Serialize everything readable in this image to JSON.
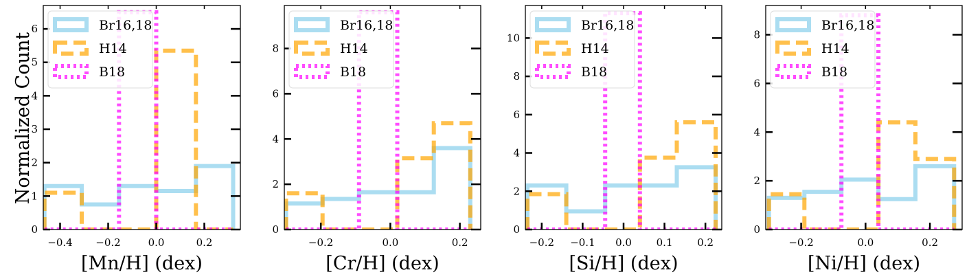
{
  "figure": {
    "ylabel_shared": "Normalized Count",
    "legend_entries": [
      "Br16,18",
      "H14",
      "B18"
    ],
    "colors": {
      "Br16,18": "#87CEEB",
      "H14": "#FFA500",
      "B18": "#FF00FF",
      "axis": "#000000"
    }
  },
  "chart_data": [
    {
      "type": "histogram",
      "title": "",
      "xlabel": "[Mn/H] (dex)",
      "ylabel": "Normalized Count",
      "xlim": [
        -0.47,
        0.35
      ],
      "ylim": [
        0,
        6.7
      ],
      "xticks": [
        -0.4,
        -0.2,
        0.0,
        0.2
      ],
      "xtick_labels": [
        "−0.4",
        "−0.2",
        "0.0",
        "0.2"
      ],
      "yticks": [
        0,
        1,
        2,
        3,
        4,
        5,
        6
      ],
      "ytick_labels": [
        "0",
        "1",
        "2",
        "3",
        "4",
        "5",
        "6"
      ],
      "legend_location": "upper-left",
      "series": [
        {
          "name": "Br16,18",
          "style": "solid",
          "edges": [
            -0.465,
            -0.31,
            -0.155,
            0.0,
            0.165,
            0.32
          ],
          "counts": [
            1.3,
            0.75,
            1.3,
            1.15,
            1.9
          ]
        },
        {
          "name": "H14",
          "style": "dashed",
          "edges": [
            -0.465,
            -0.31,
            -0.155,
            0.0,
            0.165,
            0.32
          ],
          "counts": [
            1.1,
            0.0,
            0.0,
            5.35,
            0.0
          ]
        },
        {
          "name": "B18",
          "style": "dotted",
          "edges": [
            -0.465,
            -0.155,
            0.0,
            0.32
          ],
          "counts": [
            0.0,
            6.5,
            0.0
          ]
        }
      ]
    },
    {
      "type": "histogram",
      "title": "",
      "xlabel": "[Cr/H] (dex)",
      "ylabel": "",
      "xlim": [
        -0.305,
        0.26
      ],
      "ylim": [
        0,
        9.9
      ],
      "xticks": [
        -0.2,
        0.0,
        0.2
      ],
      "xtick_labels": [
        "−0.2",
        "0.0",
        "0.2"
      ],
      "yticks": [
        0,
        2,
        4,
        6,
        8
      ],
      "ytick_labels": [
        "0",
        "2",
        "4",
        "6",
        "8"
      ],
      "legend_location": "upper-left",
      "series": [
        {
          "name": "Br16,18",
          "style": "solid",
          "edges": [
            -0.3,
            -0.195,
            -0.09,
            0.02,
            0.125,
            0.23
          ],
          "counts": [
            1.15,
            1.35,
            1.65,
            1.65,
            3.6
          ]
        },
        {
          "name": "H14",
          "style": "dashed",
          "edges": [
            -0.3,
            -0.195,
            -0.09,
            0.02,
            0.125,
            0.23
          ],
          "counts": [
            1.6,
            0.0,
            0.0,
            3.15,
            4.7
          ]
        },
        {
          "name": "B18",
          "style": "dotted",
          "edges": [
            -0.3,
            -0.09,
            0.02,
            0.23
          ],
          "counts": [
            0.0,
            9.6,
            0.0
          ]
        }
      ]
    },
    {
      "type": "histogram",
      "title": "",
      "xlabel": "[Si/H] (dex)",
      "ylabel": "",
      "xlim": [
        -0.24,
        0.24
      ],
      "ylim": [
        0,
        11.7
      ],
      "xticks": [
        -0.2,
        -0.1,
        0.0,
        0.1,
        0.2
      ],
      "xtick_labels": [
        "−0.2",
        "−0.1",
        "0.0",
        "0.1",
        "0.2"
      ],
      "yticks": [
        0,
        2,
        4,
        6,
        8,
        10
      ],
      "ytick_labels": [
        "0",
        "2",
        "4",
        "6",
        "8",
        "10"
      ],
      "legend_location": "upper-left",
      "series": [
        {
          "name": "Br16,18",
          "style": "solid",
          "edges": [
            -0.235,
            -0.14,
            -0.045,
            0.04,
            0.13,
            0.225
          ],
          "counts": [
            2.3,
            0.95,
            2.3,
            2.3,
            3.25
          ]
        },
        {
          "name": "H14",
          "style": "dashed",
          "edges": [
            -0.235,
            -0.14,
            -0.045,
            0.04,
            0.13,
            0.225
          ],
          "counts": [
            1.85,
            0.0,
            0.0,
            3.75,
            5.6
          ]
        },
        {
          "name": "B18",
          "style": "dotted",
          "edges": [
            -0.235,
            -0.045,
            0.04,
            0.225
          ],
          "counts": [
            0.0,
            11.3,
            0.0
          ]
        }
      ]
    },
    {
      "type": "histogram",
      "title": "",
      "xlabel": "[Ni/H] (dex)",
      "ylabel": "",
      "xlim": [
        -0.31,
        0.3
      ],
      "ylim": [
        0,
        9.2
      ],
      "xticks": [
        -0.2,
        0.0,
        0.2
      ],
      "xtick_labels": [
        "−0.2",
        "0.0",
        "0.2"
      ],
      "yticks": [
        0,
        2,
        4,
        6,
        8
      ],
      "ytick_labels": [
        "0",
        "2",
        "4",
        "6",
        "8"
      ],
      "legend_location": "upper-left",
      "series": [
        {
          "name": "Br16,18",
          "style": "solid",
          "edges": [
            -0.3,
            -0.19,
            -0.075,
            0.04,
            0.155,
            0.275
          ],
          "counts": [
            1.3,
            1.55,
            2.05,
            1.25,
            2.6
          ]
        },
        {
          "name": "H14",
          "style": "dashed",
          "edges": [
            -0.3,
            -0.19,
            -0.075,
            0.04,
            0.155,
            0.275
          ],
          "counts": [
            1.45,
            0.0,
            0.0,
            4.4,
            2.9
          ]
        },
        {
          "name": "B18",
          "style": "dotted",
          "edges": [
            -0.3,
            -0.075,
            0.04,
            0.275
          ],
          "counts": [
            0.0,
            8.8,
            0.0
          ]
        }
      ]
    }
  ]
}
